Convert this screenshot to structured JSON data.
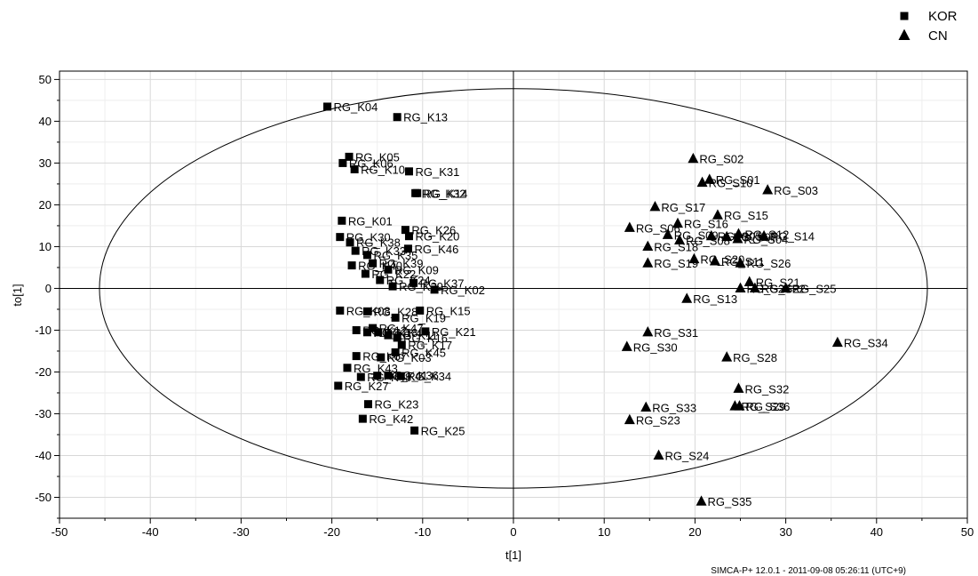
{
  "chart_data": {
    "type": "scatter",
    "title": "",
    "xlabel": "t[1]",
    "ylabel": "to[1]",
    "xlim": [
      -50,
      50
    ],
    "ylim": [
      -55,
      52
    ],
    "xticks": [
      -50,
      -40,
      -30,
      -20,
      -10,
      0,
      10,
      20,
      30,
      40,
      50
    ],
    "yticks": [
      -50,
      -40,
      -30,
      -20,
      -10,
      0,
      10,
      20,
      30,
      40,
      50
    ],
    "grid": true,
    "legend": "top-right",
    "ellipse": {
      "cx": 0,
      "cy": 0,
      "rx": 45.6,
      "ry": 47.8
    },
    "footer": "SIMCA-P+ 12.0.1 - 2011-09-08 05:26:11 (UTC+9)",
    "series": [
      {
        "name": "KOR",
        "marker": "square",
        "points": [
          {
            "label": "RG_K04",
            "x": -20.5,
            "y": 43.5
          },
          {
            "label": "RG_K13",
            "x": -12.8,
            "y": 41
          },
          {
            "label": "RG_K05",
            "x": -18.1,
            "y": 31.5
          },
          {
            "label": "RG_K06",
            "x": -18.8,
            "y": 30
          },
          {
            "label": "RG_K10",
            "x": -17.5,
            "y": 28.5
          },
          {
            "label": "RG_K31",
            "x": -11.5,
            "y": 28
          },
          {
            "label": "RG_K32",
            "x": -10.8,
            "y": 22.8
          },
          {
            "label": "RG_K14",
            "x": -10.6,
            "y": 22.8
          },
          {
            "label": "RG_K01",
            "x": -18.9,
            "y": 16.2
          },
          {
            "label": "RG_K26",
            "x": -11.9,
            "y": 14
          },
          {
            "label": "RG_K20",
            "x": -11.5,
            "y": 12.5
          },
          {
            "label": "RG_K30",
            "x": -19.1,
            "y": 12.3
          },
          {
            "label": "RG_K38",
            "x": -18,
            "y": 11
          },
          {
            "label": "RG_K46",
            "x": -11.6,
            "y": 9.5
          },
          {
            "label": "RG_K33",
            "x": -17.4,
            "y": 9
          },
          {
            "label": "RG_K35",
            "x": -16.1,
            "y": 8
          },
          {
            "label": "RG_K39",
            "x": -15.5,
            "y": 6
          },
          {
            "label": "RG_K40",
            "x": -17.8,
            "y": 5.5
          },
          {
            "label": "RG_K09",
            "x": -13.8,
            "y": 4.5
          },
          {
            "label": "RG_K22",
            "x": -16.3,
            "y": 3.5
          },
          {
            "label": "RG_K24",
            "x": -14.7,
            "y": 2
          },
          {
            "label": "RG_K37",
            "x": -11,
            "y": 1.3
          },
          {
            "label": "RG_K29",
            "x": -13.3,
            "y": 0.5
          },
          {
            "label": "RG_K02",
            "x": -8.7,
            "y": -0.3
          },
          {
            "label": "RG_K08",
            "x": -19.1,
            "y": -5.3
          },
          {
            "label": "RG_K28",
            "x": -16.1,
            "y": -5.5
          },
          {
            "label": "RG_K15",
            "x": -10.3,
            "y": -5.3
          },
          {
            "label": "RG_K19",
            "x": -13,
            "y": -7
          },
          {
            "label": "RG_K21",
            "x": -9.7,
            "y": -10.3
          },
          {
            "label": "RG_K47",
            "x": -15.5,
            "y": -9.5
          },
          {
            "label": "RG_K12",
            "x": -17.3,
            "y": -10
          },
          {
            "label": "RG_K18",
            "x": -16.1,
            "y": -10.5
          },
          {
            "label": "RG_K44",
            "x": -14.9,
            "y": -10.5
          },
          {
            "label": "RG_K11",
            "x": -13.8,
            "y": -11.2
          },
          {
            "label": "RG_K16",
            "x": -12.8,
            "y": -11.8
          },
          {
            "label": "RG_K17",
            "x": -12.3,
            "y": -13.5
          },
          {
            "label": "RG_K45",
            "x": -13,
            "y": -15.3
          },
          {
            "label": "RG_K07",
            "x": -17.3,
            "y": -16.2
          },
          {
            "label": "RG_K03",
            "x": -14.6,
            "y": -16.5
          },
          {
            "label": "RG_K43",
            "x": -18.3,
            "y": -19
          },
          {
            "label": "RG_K36",
            "x": -13.8,
            "y": -20.8
          },
          {
            "label": "RG_K41",
            "x": -15,
            "y": -20.9
          },
          {
            "label": "RG_K34",
            "x": -12.4,
            "y": -21
          },
          {
            "label": "RG_K48",
            "x": -16.8,
            "y": -21.2
          },
          {
            "label": "RG_K27",
            "x": -19.3,
            "y": -23.3
          },
          {
            "label": "RG_K23",
            "x": -16,
            "y": -27.7
          },
          {
            "label": "RG_K42",
            "x": -16.6,
            "y": -31.2
          },
          {
            "label": "RG_K25",
            "x": -10.9,
            "y": -34
          }
        ]
      },
      {
        "name": "CN",
        "marker": "triangle",
        "points": [
          {
            "label": "RG_S02",
            "x": 19.8,
            "y": 31
          },
          {
            "label": "RG_S01",
            "x": 21.6,
            "y": 26
          },
          {
            "label": "RG_S10",
            "x": 20.8,
            "y": 25.3
          },
          {
            "label": "RG_S03",
            "x": 28,
            "y": 23.5
          },
          {
            "label": "RG_S17",
            "x": 15.6,
            "y": 19.5
          },
          {
            "label": "RG_S15",
            "x": 22.5,
            "y": 17.5
          },
          {
            "label": "RG_S16",
            "x": 18.1,
            "y": 15.5
          },
          {
            "label": "RG_S06",
            "x": 12.8,
            "y": 14.5
          },
          {
            "label": "RG_S09",
            "x": 17,
            "y": 12.8
          },
          {
            "label": "RG_S12",
            "x": 24.8,
            "y": 13
          },
          {
            "label": "RG_S14",
            "x": 27.6,
            "y": 12.5
          },
          {
            "label": "RG_S05",
            "x": 21.8,
            "y": 12.5
          },
          {
            "label": "RG_S07",
            "x": 23.5,
            "y": 12.3
          },
          {
            "label": "RG_S04",
            "x": 24.7,
            "y": 11.8
          },
          {
            "label": "RG_S08",
            "x": 18.3,
            "y": 11.5
          },
          {
            "label": "RG_S18",
            "x": 14.8,
            "y": 10
          },
          {
            "label": "RG_S20",
            "x": 19.9,
            "y": 7
          },
          {
            "label": "RG_S11",
            "x": 22.2,
            "y": 6.5
          },
          {
            "label": "RG_S19",
            "x": 14.8,
            "y": 6
          },
          {
            "label": "RG_S26",
            "x": 25,
            "y": 6
          },
          {
            "label": "RG_S21",
            "x": 26,
            "y": 1.5
          },
          {
            "label": "RG_S22",
            "x": 26.6,
            "y": 0
          },
          {
            "label": "RG_S27",
            "x": 25,
            "y": 0
          },
          {
            "label": "RG_S25",
            "x": 30,
            "y": 0
          },
          {
            "label": "RG_S13",
            "x": 19.1,
            "y": -2.5
          },
          {
            "label": "RG_S34",
            "x": 35.7,
            "y": -13
          },
          {
            "label": "RG_S31",
            "x": 14.8,
            "y": -10.5
          },
          {
            "label": "RG_S30",
            "x": 12.5,
            "y": -14
          },
          {
            "label": "RG_S28",
            "x": 23.5,
            "y": -16.5
          },
          {
            "label": "RG_S32",
            "x": 24.8,
            "y": -24
          },
          {
            "label": "RG_S33",
            "x": 14.6,
            "y": -28.5
          },
          {
            "label": "RG_S29",
            "x": 24.4,
            "y": -28.2
          },
          {
            "label": "RG_S36",
            "x": 24.9,
            "y": -28.2
          },
          {
            "label": "RG_S23",
            "x": 12.8,
            "y": -31.5
          },
          {
            "label": "RG_S24",
            "x": 16,
            "y": -40
          },
          {
            "label": "RG_S35",
            "x": 20.7,
            "y": -51
          }
        ]
      }
    ]
  }
}
